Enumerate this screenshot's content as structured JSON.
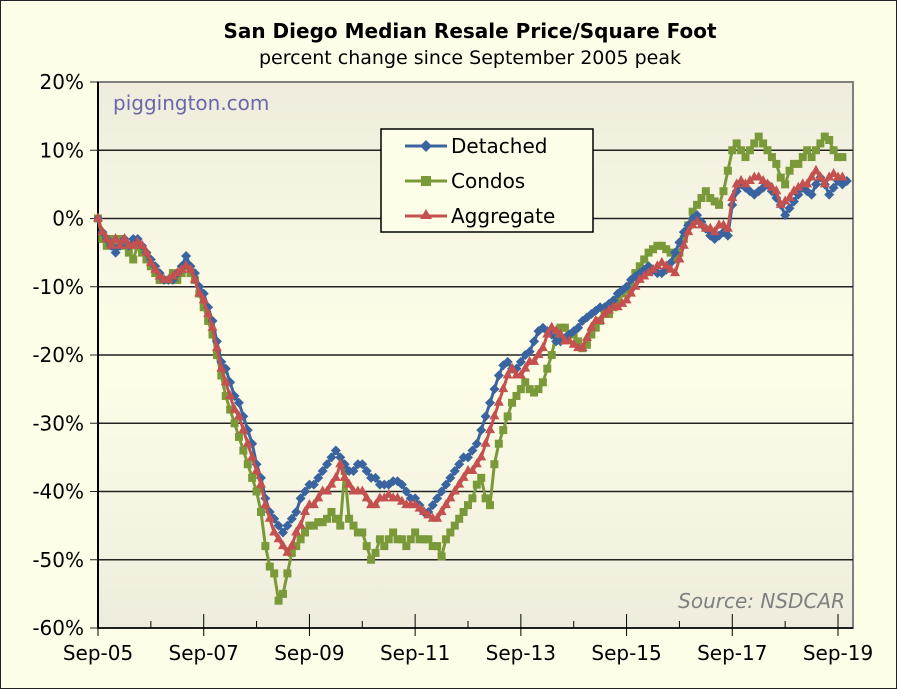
{
  "chart_data": {
    "type": "line",
    "title": "San Diego Median Resale Price/Square Foot",
    "subtitle": "percent change since September 2005 peak",
    "xlabel": "",
    "ylabel": "",
    "ylim": [
      -60,
      20
    ],
    "yticks": [
      20,
      10,
      0,
      -10,
      -20,
      -30,
      -40,
      -50,
      -60
    ],
    "ytick_labels": [
      "20%",
      "10%",
      "0%",
      "-10%",
      "-20%",
      "-30%",
      "-40%",
      "-50%",
      "-60%"
    ],
    "xtick_labels": [
      "Sep-05",
      "Sep-07",
      "Sep-09",
      "Sep-11",
      "Sep-13",
      "Sep-15",
      "Sep-17",
      "Sep-19"
    ],
    "x_start": "Sep-05",
    "x_unit": "months since Sep-05",
    "grid": true,
    "legend_position": "top-center",
    "watermark": "piggington.com",
    "source": "Source: NSDCAR",
    "colors": {
      "Detached": "#3a64a0",
      "Condos": "#7a9a3a",
      "Aggregate": "#c4504f"
    },
    "series": [
      {
        "name": "Detached",
        "marker": "diamond",
        "color": "#3a64a0",
        "values": [
          0,
          -2,
          -3,
          -4,
          -5,
          -4,
          -3,
          -4,
          -3,
          -3,
          -4,
          -5,
          -6,
          -7,
          -8,
          -9,
          -9,
          -9,
          -8,
          -7,
          -5.5,
          -7,
          -8,
          -10,
          -11,
          -13,
          -15,
          -18,
          -21,
          -22,
          -24,
          -26,
          -27,
          -29,
          -31,
          -33,
          -36,
          -38,
          -41,
          -43,
          -44,
          -45,
          -46,
          -45,
          -44,
          -43,
          -41,
          -40,
          -39,
          -39,
          -38,
          -37,
          -36,
          -35,
          -34,
          -35,
          -36,
          -37,
          -37,
          -36,
          -36,
          -37,
          -38,
          -38,
          -39,
          -39,
          -39,
          -38.5,
          -38.5,
          -39,
          -40,
          -41,
          -41,
          -42,
          -43,
          -43,
          -42,
          -41,
          -40,
          -39,
          -38,
          -37,
          -36,
          -35,
          -35,
          -34,
          -33,
          -31,
          -29,
          -27,
          -25,
          -23,
          -21.5,
          -21,
          -22,
          -22,
          -21,
          -20,
          -19.5,
          -18,
          -16.5,
          -16,
          -16.5,
          -17,
          -18,
          -18,
          -17.5,
          -17,
          -16.5,
          -16,
          -15,
          -14.5,
          -14,
          -13.5,
          -13,
          -13,
          -12.5,
          -12,
          -11,
          -10.5,
          -10,
          -9,
          -8.5,
          -8,
          -7.5,
          -7,
          -7.5,
          -8,
          -8,
          -7.5,
          -6.5,
          -5,
          -3.5,
          -2,
          -1,
          0,
          0.5,
          -0.5,
          -1.5,
          -2.5,
          -3,
          -2.5,
          -2,
          -2.5,
          2,
          4,
          5,
          4.5,
          4,
          3.5,
          4,
          4.5,
          5,
          4,
          3,
          2,
          0.5,
          1.5,
          2.5,
          3.5,
          4.5,
          4,
          3.5,
          5,
          6,
          5,
          3.5,
          4.5,
          5.5,
          5,
          5.5
        ]
      },
      {
        "name": "Condos",
        "marker": "square",
        "color": "#7a9a3a",
        "values": [
          0,
          -3,
          -4,
          -3,
          -4,
          -3,
          -4,
          -5,
          -6,
          -4,
          -5,
          -6,
          -7,
          -8,
          -9,
          -9,
          -9,
          -8,
          -9,
          -8,
          -7,
          -8,
          -9,
          -11,
          -13,
          -15,
          -17,
          -20,
          -23,
          -26,
          -28,
          -30,
          -32,
          -34,
          -36,
          -38,
          -40,
          -43,
          -48,
          -51,
          -52,
          -56,
          -55,
          -52,
          -49,
          -48,
          -47,
          -46,
          -45,
          -45,
          -44.5,
          -44.5,
          -44,
          -43,
          -44,
          -45,
          -37,
          -44,
          -45,
          -46,
          -46,
          -48,
          -50,
          -49,
          -47,
          -48,
          -47,
          -46,
          -47,
          -47,
          -48,
          -47,
          -46,
          -47,
          -47,
          -47,
          -48,
          -48,
          -49.5,
          -47,
          -46,
          -45,
          -44,
          -43,
          -42,
          -41,
          -39,
          -38,
          -41,
          -42,
          -36,
          -33,
          -31,
          -29,
          -27,
          -26,
          -25,
          -24,
          -25,
          -25.5,
          -25,
          -24,
          -22,
          -20,
          -17,
          -16,
          -16,
          -17,
          -17,
          -18,
          -19,
          -18.5,
          -17,
          -16,
          -15,
          -14,
          -14,
          -13,
          -12,
          -11,
          -10.5,
          -10,
          -8,
          -7,
          -6,
          -5,
          -4.5,
          -4,
          -4,
          -4.5,
          -5,
          -6,
          -5,
          -3,
          -1,
          1,
          2,
          3,
          4,
          3,
          2.5,
          2,
          4,
          7,
          10,
          11,
          10,
          9,
          10,
          11,
          12,
          11,
          10,
          9,
          8,
          6,
          5,
          7,
          8,
          8,
          9,
          10,
          9,
          10,
          11,
          12,
          11.5,
          10,
          9,
          9
        ]
      },
      {
        "name": "Aggregate",
        "marker": "triangle",
        "color": "#c4504f",
        "values": [
          0,
          -2,
          -3,
          -4,
          -3,
          -4,
          -3,
          -4,
          -4,
          -3.5,
          -4,
          -5,
          -6.5,
          -7.5,
          -8.5,
          -9,
          -9,
          -8.5,
          -8,
          -7.5,
          -7,
          -7.5,
          -9,
          -11,
          -12,
          -14,
          -16,
          -19,
          -22,
          -24,
          -26,
          -28,
          -29,
          -31,
          -33,
          -35,
          -37,
          -39,
          -42,
          -44,
          -46,
          -47,
          -48,
          -49,
          -48,
          -46,
          -45,
          -43,
          -42,
          -42,
          -41,
          -40,
          -40,
          -39,
          -38,
          -36,
          -38,
          -39,
          -40,
          -40,
          -40,
          -41,
          -42,
          -42,
          -41,
          -41,
          -40.5,
          -41,
          -41,
          -41.5,
          -42,
          -42,
          -42,
          -42.5,
          -43,
          -43.5,
          -44,
          -44,
          -43,
          -42,
          -41,
          -40,
          -39,
          -38,
          -37,
          -37,
          -36,
          -35,
          -33,
          -31,
          -29,
          -27,
          -25,
          -23,
          -22,
          -23,
          -23,
          -22,
          -21,
          -21,
          -20,
          -19,
          -17,
          -16,
          -16.5,
          -17,
          -18,
          -18,
          -18.5,
          -19,
          -19,
          -17.5,
          -16,
          -15,
          -15,
          -14,
          -13.5,
          -13,
          -13,
          -12.5,
          -12,
          -11,
          -10,
          -9,
          -8.5,
          -8,
          -7.5,
          -7,
          -6.5,
          -7,
          -7.5,
          -8,
          -6,
          -4,
          -2,
          -1,
          -0.5,
          -1,
          -1.5,
          -1.5,
          -2,
          -1,
          -1,
          -1.5,
          3,
          5,
          5.5,
          5,
          5.5,
          6,
          6,
          5.5,
          5,
          4.5,
          4,
          2,
          2.5,
          3,
          4,
          4.5,
          5,
          5,
          6,
          7,
          6,
          5,
          6,
          6.5,
          6,
          6
        ]
      }
    ]
  }
}
